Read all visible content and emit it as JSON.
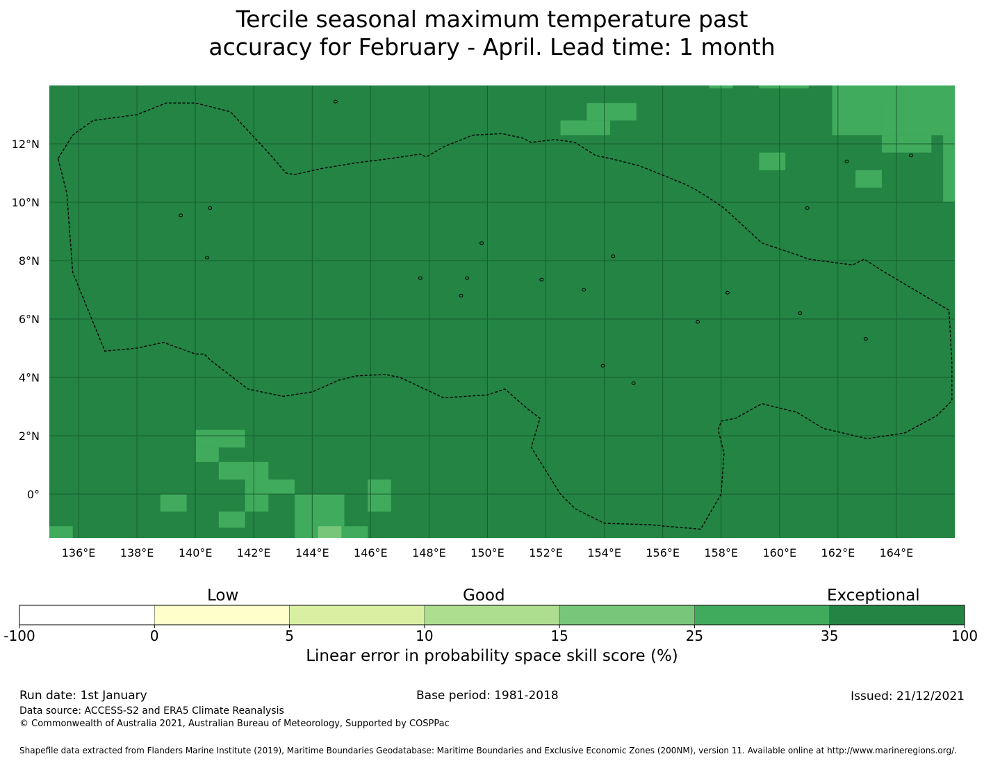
{
  "title_line1": "Tercile seasonal maximum temperature past",
  "title_line2": "accuracy for February - April. Lead time: 1 month",
  "map": {
    "lon_range": [
      135,
      166
    ],
    "lat_range": [
      -1.5,
      14
    ],
    "lon_labels": [
      "136°E",
      "138°E",
      "140°E",
      "142°E",
      "144°E",
      "146°E",
      "148°E",
      "150°E",
      "152°E",
      "154°E",
      "156°E",
      "158°E",
      "160°E",
      "162°E",
      "164°E"
    ],
    "lat_labels": [
      "12°N",
      "10°N",
      "8°N",
      "6°N",
      "4°N",
      "2°N",
      "0°"
    ],
    "base_color": "#238443",
    "highlight_cells": [
      {
        "lon": 161.8,
        "lat": 13.5,
        "w": 4.2,
        "h": 0.6,
        "color": "#41ab5d"
      },
      {
        "lon": 157.6,
        "lat": 13.9,
        "w": 0.8,
        "h": 0.2,
        "color": "#41ab5d"
      },
      {
        "lon": 159.3,
        "lat": 13.9,
        "w": 1.7,
        "h": 0.2,
        "color": "#41ab5d"
      },
      {
        "lon": 161.8,
        "lat": 12.3,
        "w": 1.7,
        "h": 1.2,
        "color": "#41ab5d"
      },
      {
        "lon": 163.5,
        "lat": 12.3,
        "w": 2.5,
        "h": 1.2,
        "color": "#41ab5d"
      },
      {
        "lon": 163.5,
        "lat": 11.7,
        "w": 1.7,
        "h": 0.6,
        "color": "#41ab5d"
      },
      {
        "lon": 165.6,
        "lat": 10.0,
        "w": 0.4,
        "h": 2.3,
        "color": "#41ab5d"
      },
      {
        "lon": 153.4,
        "lat": 12.8,
        "w": 1.7,
        "h": 0.6,
        "color": "#41ab5d"
      },
      {
        "lon": 152.5,
        "lat": 12.3,
        "w": 1.7,
        "h": 0.5,
        "color": "#41ab5d"
      },
      {
        "lon": 159.3,
        "lat": 11.1,
        "w": 0.9,
        "h": 0.6,
        "color": "#41ab5d"
      },
      {
        "lon": 162.6,
        "lat": 10.5,
        "w": 0.9,
        "h": 0.6,
        "color": "#41ab5d"
      },
      {
        "lon": 140.0,
        "lat": 1.6,
        "w": 1.7,
        "h": 0.6,
        "color": "#41ab5d"
      },
      {
        "lon": 140.0,
        "lat": 1.1,
        "w": 0.8,
        "h": 0.5,
        "color": "#41ab5d"
      },
      {
        "lon": 140.8,
        "lat": 0.5,
        "w": 1.7,
        "h": 0.6,
        "color": "#41ab5d"
      },
      {
        "lon": 141.7,
        "lat": 0.0,
        "w": 1.7,
        "h": 0.5,
        "color": "#41ab5d"
      },
      {
        "lon": 141.7,
        "lat": -0.6,
        "w": 0.8,
        "h": 0.6,
        "color": "#41ab5d"
      },
      {
        "lon": 138.8,
        "lat": -0.6,
        "w": 0.9,
        "h": 0.6,
        "color": "#41ab5d"
      },
      {
        "lon": 140.8,
        "lat": -1.15,
        "w": 0.9,
        "h": 0.55,
        "color": "#41ab5d"
      },
      {
        "lon": 143.4,
        "lat": -1.5,
        "w": 1.7,
        "h": 1.5,
        "color": "#41ab5d"
      },
      {
        "lon": 145.9,
        "lat": -0.6,
        "w": 0.8,
        "h": 1.1,
        "color": "#41ab5d"
      },
      {
        "lon": 145.1,
        "lat": -1.5,
        "w": 0.8,
        "h": 0.4,
        "color": "#41ab5d"
      },
      {
        "lon": 135.0,
        "lat": -1.5,
        "w": 0.8,
        "h": 0.4,
        "color": "#41ab5d"
      },
      {
        "lon": 144.2,
        "lat": -1.5,
        "w": 0.8,
        "h": 0.4,
        "color": "#78c679"
      }
    ],
    "eez_boundary": [
      [
        135.3,
        11.5
      ],
      [
        135.8,
        12.3
      ],
      [
        136.5,
        12.8
      ],
      [
        138.0,
        13.0
      ],
      [
        139.0,
        13.4
      ],
      [
        140.0,
        13.4
      ],
      [
        141.2,
        13.1
      ],
      [
        142.5,
        11.7
      ],
      [
        143.1,
        11.0
      ],
      [
        143.4,
        10.95
      ],
      [
        144.3,
        11.15
      ],
      [
        145.5,
        11.35
      ],
      [
        146.7,
        11.5
      ],
      [
        147.7,
        11.65
      ],
      [
        147.9,
        11.55
      ],
      [
        148.5,
        11.9
      ],
      [
        149.5,
        12.3
      ],
      [
        150.5,
        12.35
      ],
      [
        151.2,
        12.2
      ],
      [
        151.5,
        12.05
      ],
      [
        152.3,
        12.15
      ],
      [
        153.0,
        12.05
      ],
      [
        153.7,
        11.6
      ],
      [
        154.2,
        11.5
      ],
      [
        155.2,
        11.25
      ],
      [
        156.2,
        10.85
      ],
      [
        156.8,
        10.6
      ],
      [
        157.1,
        10.45
      ],
      [
        157.5,
        10.2
      ],
      [
        158.1,
        9.8
      ],
      [
        159.4,
        8.6
      ],
      [
        160.6,
        8.2
      ],
      [
        161.0,
        8.05
      ],
      [
        162.5,
        7.85
      ],
      [
        162.9,
        8.05
      ],
      [
        163.6,
        7.6
      ],
      [
        165.8,
        6.3
      ],
      [
        165.9,
        4.5
      ],
      [
        165.9,
        3.2
      ],
      [
        165.4,
        2.7
      ],
      [
        164.3,
        2.1
      ],
      [
        163.0,
        1.9
      ],
      [
        161.5,
        2.25
      ],
      [
        160.6,
        2.8
      ],
      [
        160.0,
        2.95
      ],
      [
        159.4,
        3.1
      ],
      [
        158.5,
        2.6
      ],
      [
        158.0,
        2.5
      ],
      [
        157.9,
        2.2
      ],
      [
        158.1,
        1.4
      ],
      [
        158.0,
        0.0
      ],
      [
        157.3,
        -1.2
      ],
      [
        156.1,
        -1.1
      ],
      [
        155.6,
        -1.05
      ],
      [
        154.0,
        -1.0
      ],
      [
        153.0,
        -0.5
      ],
      [
        152.5,
        0.0
      ],
      [
        151.5,
        1.6
      ],
      [
        151.8,
        2.6
      ],
      [
        151.4,
        2.9
      ],
      [
        150.6,
        3.6
      ],
      [
        150.0,
        3.4
      ],
      [
        148.5,
        3.3
      ],
      [
        147.0,
        4.0
      ],
      [
        146.5,
        4.1
      ],
      [
        145.5,
        4.05
      ],
      [
        144.9,
        3.9
      ],
      [
        144.0,
        3.5
      ],
      [
        143.0,
        3.35
      ],
      [
        141.8,
        3.6
      ],
      [
        140.5,
        4.6
      ],
      [
        140.3,
        4.8
      ],
      [
        140.0,
        4.8
      ],
      [
        138.9,
        5.2
      ],
      [
        138.0,
        5.0
      ],
      [
        136.9,
        4.9
      ],
      [
        135.8,
        7.6
      ],
      [
        135.6,
        10.3
      ],
      [
        135.3,
        11.5
      ]
    ],
    "islands": [
      [
        144.8,
        13.45
      ],
      [
        139.5,
        9.55
      ],
      [
        151.85,
        7.35
      ],
      [
        158.22,
        6.9
      ],
      [
        162.95,
        5.32
      ],
      [
        153.95,
        4.4
      ],
      [
        147.7,
        7.4
      ],
      [
        149.3,
        7.4
      ],
      [
        155.0,
        3.8
      ],
      [
        157.2,
        5.9
      ],
      [
        160.7,
        6.2
      ],
      [
        162.3,
        11.4
      ],
      [
        164.5,
        11.6
      ],
      [
        160.95,
        9.8
      ],
      [
        149.1,
        6.8
      ],
      [
        149.8,
        8.6
      ],
      [
        140.4,
        8.1
      ],
      [
        153.3,
        7.0
      ],
      [
        154.3,
        8.15
      ],
      [
        140.5,
        9.8
      ]
    ]
  },
  "colorbar": {
    "category_labels": {
      "low": "Low",
      "good": "Good",
      "exceptional": "Exceptional"
    },
    "tick_labels": [
      "-100",
      "0",
      "5",
      "10",
      "15",
      "25",
      "35",
      "100"
    ],
    "colors": [
      "#ffffff",
      "#ffffcc",
      "#d9f0a3",
      "#addd8e",
      "#78c679",
      "#41ab5d",
      "#238443"
    ],
    "label": "Linear error in probability space skill score (%)"
  },
  "footer": {
    "run_date": "Run date: 1st January",
    "base_period": "Base period: 1981-2018",
    "issued": "Issued: 21/12/2021",
    "data_source": "Data source: ACCESS-S2 and ERA5 Climate Reanalysis",
    "copyright": "© Commonwealth of Australia 2021, Australian Bureau of Meteorology, Supported by COSPPac",
    "shapefile": "Shapefile data extracted from Flanders Marine Institute (2019), Maritime Boundaries Geodatabase: Maritime Boundaries and Exclusive Economic Zones (200NM), version 11. Available online at http://www.marineregions.org/."
  }
}
